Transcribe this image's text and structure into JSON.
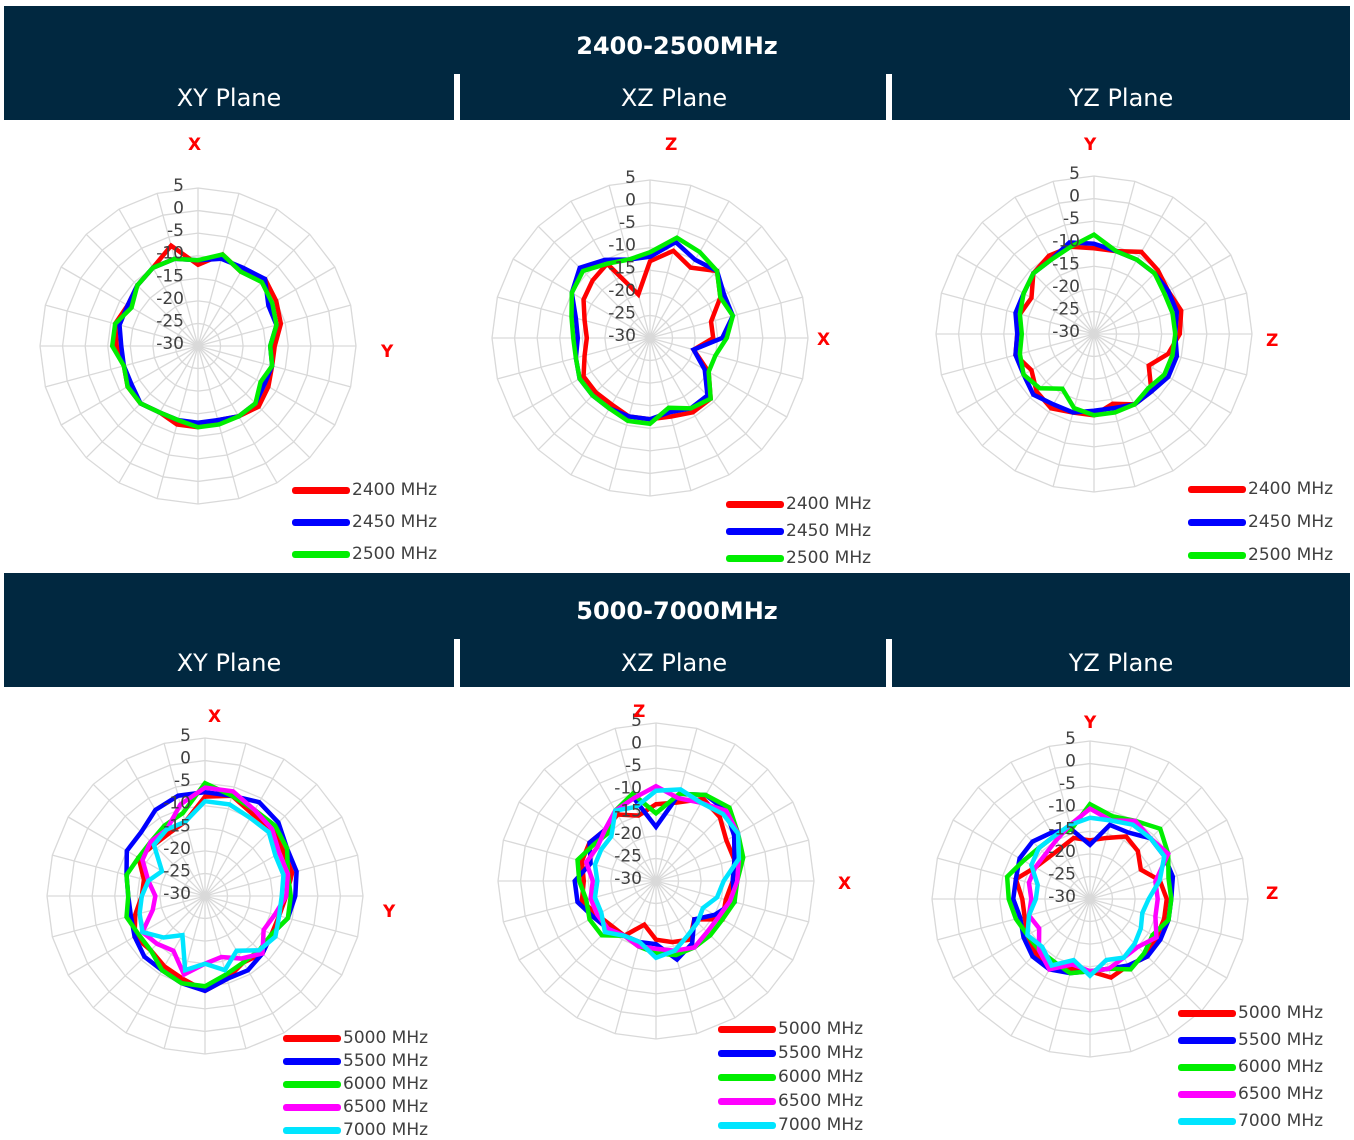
{
  "sections": [
    {
      "title": "2400-2500MHz",
      "planes": [
        "XY Plane",
        "XZ Plane",
        "YZ Plane"
      ]
    },
    {
      "title": "5000-7000MHz",
      "planes": [
        "XY Plane",
        "XZ Plane",
        "YZ Plane"
      ]
    }
  ],
  "colors": {
    "header_bg": "#012840",
    "axis_label": "#ff0000",
    "grid": "#d9d9d9"
  },
  "chart_data": [
    {
      "type": "radar",
      "plane": "XY Plane",
      "top_label": "X",
      "right_label": "Y",
      "rlim": [
        -30,
        5
      ],
      "ticks": [
        "5",
        "0",
        "-5",
        "-10",
        "-15",
        "-20",
        "-25",
        "-30"
      ],
      "series": [
        {
          "name": "2400 MHz",
          "color": "#ff0000",
          "values": [
            -12,
            -9,
            -11,
            -9,
            -10,
            -11,
            -13,
            -13,
            -12,
            -11,
            -12,
            -13,
            -12,
            -12,
            -13,
            -12,
            -12,
            -13,
            -12,
            -11,
            -12,
            -11,
            -10,
            -7
          ]
        },
        {
          "name": "2450 MHz",
          "color": "#0000ff",
          "values": [
            -11,
            -10,
            -10,
            -9,
            -12,
            -12,
            -14,
            -13,
            -13,
            -12,
            -12,
            -13,
            -13,
            -13,
            -13,
            -12,
            -13,
            -13,
            -13,
            -12,
            -12,
            -11,
            -10,
            -10
          ]
        },
        {
          "name": "2500 MHz",
          "color": "#00ee00",
          "values": [
            -11,
            -9,
            -11,
            -10,
            -11,
            -12,
            -14,
            -13,
            -14,
            -12,
            -12,
            -12,
            -12,
            -13,
            -13,
            -12,
            -12,
            -13,
            -11,
            -11,
            -13,
            -11,
            -10,
            -10
          ]
        }
      ]
    },
    {
      "type": "radar",
      "plane": "XZ Plane",
      "top_label": "Z",
      "right_label": "X",
      "rlim": [
        -30,
        5
      ],
      "ticks": [
        "5",
        "0",
        "-5",
        "-10",
        "-15",
        "-20",
        "-25",
        "-30"
      ],
      "series": [
        {
          "name": "2400 MHz",
          "color": "#ff0000",
          "values": [
            -13,
            -10,
            -12,
            -9,
            -12,
            -16,
            -16,
            -20,
            -15,
            -11,
            -11,
            -12,
            -12,
            -12,
            -13,
            -13,
            -13,
            -15,
            -16,
            -15,
            -13,
            -12,
            -11,
            -20
          ]
        },
        {
          "name": "2450 MHz",
          "color": "#0000ff",
          "values": [
            -12,
            -8,
            -10,
            -9,
            -11,
            -11,
            -14,
            -20,
            -16,
            -12,
            -12,
            -13,
            -12,
            -12,
            -12,
            -12,
            -12,
            -13,
            -14,
            -13,
            -10,
            -8,
            -10,
            -12
          ]
        },
        {
          "name": "2500 MHz",
          "color": "#00ee00",
          "values": [
            -11,
            -7,
            -8,
            -9,
            -12,
            -11,
            -13,
            -15,
            -15,
            -11,
            -12,
            -14,
            -11,
            -11,
            -12,
            -12,
            -12,
            -13,
            -13,
            -12,
            -10,
            -9,
            -11,
            -12
          ]
        }
      ]
    },
    {
      "type": "radar",
      "plane": "YZ Plane",
      "top_label": "Y",
      "right_label": "Z",
      "rlim": [
        -30,
        5
      ],
      "ticks": [
        "5",
        "0",
        "-5",
        "-10",
        "-15",
        "-20",
        "-25",
        "-30"
      ],
      "series": [
        {
          "name": "2400 MHz",
          "color": "#ff0000",
          "values": [
            -11,
            -11,
            -9,
            -10,
            -11,
            -10,
            -11,
            -13,
            -16,
            -12,
            -12,
            -14,
            -12,
            -12,
            -11,
            -12,
            -14,
            -12,
            -13,
            -13,
            -14,
            -11,
            -10,
            -10
          ]
        },
        {
          "name": "2450 MHz",
          "color": "#0000ff",
          "values": [
            -10,
            -11,
            -11,
            -11,
            -11,
            -11,
            -12,
            -11,
            -11,
            -12,
            -12,
            -13,
            -13,
            -12,
            -12,
            -11,
            -12,
            -12,
            -13,
            -12,
            -12,
            -11,
            -11,
            -9
          ]
        },
        {
          "name": "2500 MHz",
          "color": "#00ee00",
          "values": [
            -8,
            -11,
            -11,
            -11,
            -12,
            -12,
            -12,
            -12,
            -12,
            -13,
            -12,
            -12,
            -12,
            -13,
            -16,
            -13,
            -12,
            -13,
            -14,
            -13,
            -12,
            -11,
            -11,
            -10
          ]
        }
      ]
    },
    {
      "type": "radar",
      "plane": "XY Plane",
      "top_label": "X",
      "right_label": "Y",
      "rlim": [
        -30,
        5
      ],
      "ticks": [
        "5",
        "0",
        "-5",
        "-10",
        "-15",
        "-20",
        "-25",
        "-30"
      ],
      "series": [
        {
          "name": "5000 MHz",
          "color": "#ff0000",
          "values": [
            -8,
            -7,
            -9,
            -9,
            -10,
            -10,
            -12,
            -13,
            -13,
            -12,
            -13,
            -11,
            -9,
            -11,
            -12,
            -13,
            -12,
            -14,
            -16,
            -16,
            -13,
            -14,
            -14,
            -13
          ]
        },
        {
          "name": "5500 MHz",
          "color": "#0000ff",
          "values": [
            -7,
            -7,
            -6,
            -7,
            -9,
            -9,
            -10,
            -11,
            -13,
            -12,
            -11,
            -11,
            -9,
            -10,
            -11,
            -11,
            -12,
            -13,
            -13,
            -12,
            -10,
            -10,
            -8,
            -7
          ]
        },
        {
          "name": "6000 MHz",
          "color": "#00ee00",
          "values": [
            -5,
            -7,
            -8,
            -8,
            -9,
            -11,
            -11,
            -11,
            -13,
            -13,
            -13,
            -12,
            -10,
            -10,
            -11,
            -13,
            -13,
            -12,
            -13,
            -12,
            -13,
            -13,
            -12,
            -11
          ]
        },
        {
          "name": "6500 MHz",
          "color": "#ff00ff",
          "values": [
            -6,
            -6,
            -8,
            -9,
            -11,
            -11,
            -12,
            -14,
            -15,
            -12,
            -14,
            -16,
            -15,
            -12,
            -16,
            -15,
            -14,
            -18,
            -19,
            -17,
            -14,
            -13,
            -13,
            -9
          ]
        },
        {
          "name": "7000 MHz",
          "color": "#00e5ff",
          "values": [
            -9,
            -9,
            -10,
            -10,
            -12,
            -12,
            -13,
            -13,
            -12,
            -13,
            -16,
            -13,
            -15,
            -13,
            -20,
            -17,
            -14,
            -15,
            -16,
            -17,
            -19,
            -14,
            -13,
            -13
          ]
        }
      ]
    },
    {
      "type": "radar",
      "plane": "XZ Plane",
      "top_label": "Z",
      "right_label": "X",
      "rlim": [
        -30,
        5
      ],
      "ticks": [
        "5",
        "0",
        "-5",
        "-10",
        "-15",
        "-20",
        "-25",
        "-30"
      ],
      "series": [
        {
          "name": "5000 MHz",
          "color": "#ff0000",
          "values": [
            -13,
            -12,
            -9,
            -10,
            -12,
            -12,
            -13,
            -14,
            -13,
            -18,
            -15,
            -16,
            -17,
            -20,
            -16,
            -16,
            -15,
            -13,
            -14,
            -13,
            -13,
            -14,
            -13,
            -15
          ]
        },
        {
          "name": "5500 MHz",
          "color": "#0000ff",
          "values": [
            -18,
            -10,
            -8,
            -8,
            -10,
            -12,
            -13,
            -12,
            -15,
            -18,
            -14,
            -12,
            -16,
            -16,
            -16,
            -15,
            -14,
            -12,
            -12,
            -15,
            -13,
            -14,
            -12,
            -11
          ]
        },
        {
          "name": "6000 MHz",
          "color": "#00ee00",
          "values": [
            -15,
            -10,
            -8,
            -7,
            -9,
            -10,
            -12,
            -12,
            -13,
            -13,
            -13,
            -13,
            -14,
            -15,
            -16,
            -13,
            -13,
            -14,
            -13,
            -12,
            -14,
            -15,
            -12,
            -10
          ]
        },
        {
          "name": "6500 MHz",
          "color": "#ff00ff",
          "values": [
            -9,
            -11,
            -10,
            -8,
            -9,
            -11,
            -12,
            -13,
            -14,
            -14,
            -13,
            -14,
            -15,
            -15,
            -16,
            -15,
            -15,
            -15,
            -16,
            -14,
            -15,
            -14,
            -12,
            -11
          ]
        },
        {
          "name": "7000 MHz",
          "color": "#00e5ff",
          "values": [
            -10,
            -9,
            -10,
            -9,
            -9,
            -11,
            -15,
            -16,
            -18,
            -17,
            -16,
            -14,
            -13,
            -16,
            -16,
            -14,
            -16,
            -16,
            -17,
            -16,
            -16,
            -16,
            -12,
            -13
          ]
        }
      ]
    },
    {
      "type": "radar",
      "plane": "YZ Plane",
      "top_label": "Y",
      "right_label": "Z",
      "rlim": [
        -30,
        5
      ],
      "ticks": [
        "5",
        "0",
        "-5",
        "-10",
        "-15",
        "-20",
        "-25",
        "-30"
      ],
      "series": [
        {
          "name": "5000 MHz",
          "color": "#ff0000",
          "values": [
            -17,
            -16,
            -14,
            -15,
            -17,
            -14,
            -13,
            -13,
            -13,
            -12,
            -13,
            -12,
            -14,
            -14,
            -12,
            -13,
            -14,
            -15,
            -15,
            -13,
            -16,
            -17,
            -17,
            -16
          ]
        },
        {
          "name": "5500 MHz",
          "color": "#0000ff",
          "values": [
            -18,
            -13,
            -13,
            -11,
            -11,
            -11,
            -12,
            -12,
            -12,
            -12,
            -13,
            -14,
            -14,
            -13,
            -12,
            -12,
            -13,
            -14,
            -13,
            -13,
            -12,
            -12,
            -13,
            -14
          ]
        },
        {
          "name": "6000 MHz",
          "color": "#00ee00",
          "values": [
            -9,
            -11,
            -10,
            -8,
            -10,
            -12,
            -12,
            -12,
            -14,
            -13,
            -12,
            -14,
            -14,
            -13,
            -14,
            -14,
            -14,
            -13,
            -12,
            -11,
            -13,
            -14,
            -14,
            -14
          ]
        },
        {
          "name": "6500 MHz",
          "color": "#ff00ff",
          "values": [
            -10,
            -12,
            -10,
            -11,
            -10,
            -15,
            -15,
            -15,
            -13,
            -15,
            -15,
            -14,
            -14,
            -15,
            -12,
            -14,
            -17,
            -16,
            -17,
            -16,
            -16,
            -16,
            -15,
            -13
          ]
        },
        {
          "name": "7000 MHz",
          "color": "#00e5ff",
          "values": [
            -12,
            -12,
            -11,
            -11,
            -11,
            -14,
            -17,
            -18,
            -17,
            -16,
            -15,
            -16,
            -13,
            -16,
            -13,
            -15,
            -14,
            -16,
            -18,
            -18,
            -15,
            -14,
            -14,
            -13
          ]
        }
      ]
    }
  ]
}
